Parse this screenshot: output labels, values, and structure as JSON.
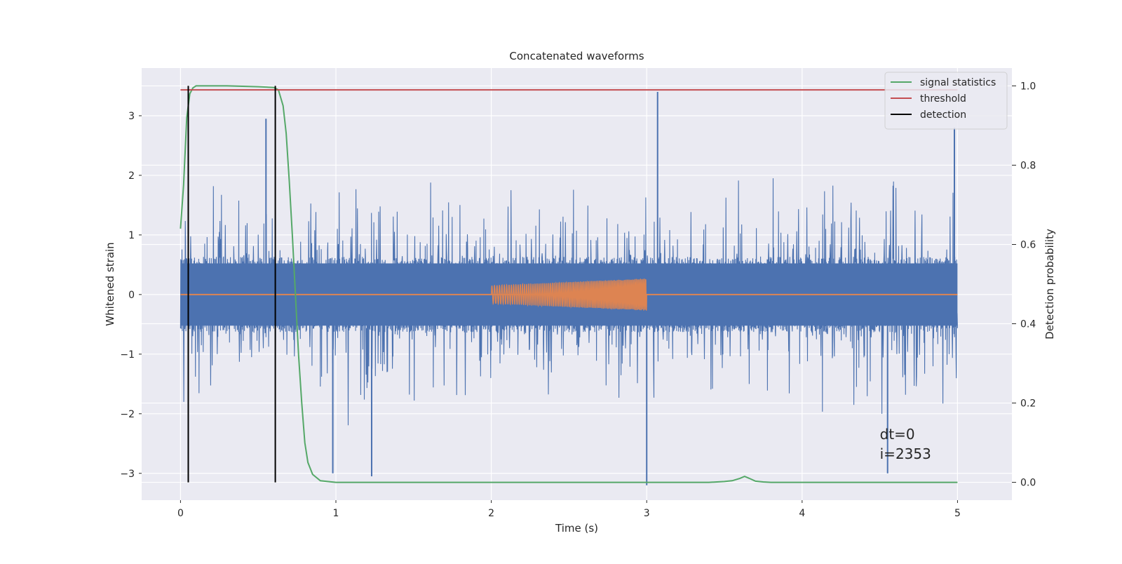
{
  "chart_data": {
    "type": "line",
    "title": "Concatenated waveforms",
    "xlabel": "Time (s)",
    "ylabel_left": "Whitened strain",
    "ylabel_right": "Detection probability",
    "xlim": [
      -0.25,
      5.35
    ],
    "ylim_left": [
      -3.45,
      3.8
    ],
    "ylim_right": [
      -0.045,
      1.045
    ],
    "xticks": [
      0,
      1,
      2,
      3,
      4,
      5
    ],
    "xtick_labels": [
      "0",
      "1",
      "2",
      "3",
      "4",
      "5"
    ],
    "yticks_left": [
      -3,
      -2,
      -1,
      0,
      1,
      2,
      3
    ],
    "ytick_labels_left": [
      "−3",
      "−2",
      "−1",
      "0",
      "1",
      "2",
      "3"
    ],
    "yticks_right": [
      0.0,
      0.2,
      0.4,
      0.6,
      0.8,
      1.0
    ],
    "ytick_labels_right": [
      "0.0",
      "0.2",
      "0.4",
      "0.6",
      "0.8",
      "1.0"
    ],
    "grid": true,
    "legend_position": "top-right",
    "series": [
      {
        "name": "",
        "axis": "left",
        "color": "#4c72b0",
        "kind": "noise",
        "x_range": [
          0,
          5
        ],
        "core_amplitude": 0.55,
        "spike_max": 3.4,
        "spike_min": -3.2
      },
      {
        "name": "",
        "axis": "left",
        "color": "#dd8452",
        "kind": "chirp",
        "x_range": [
          0,
          5
        ],
        "chirp_start": 2.0,
        "chirp_end": 3.0,
        "amplitude_start": 0.15,
        "amplitude_end": 0.27
      },
      {
        "name": "signal statistics",
        "axis": "right",
        "color": "#55a868",
        "x": [
          0.0,
          0.02,
          0.04,
          0.06,
          0.08,
          0.1,
          0.15,
          0.3,
          0.5,
          0.6,
          0.63,
          0.66,
          0.68,
          0.7,
          0.72,
          0.74,
          0.76,
          0.78,
          0.8,
          0.82,
          0.85,
          0.9,
          1.0,
          2.0,
          3.0,
          3.4,
          3.5,
          3.55,
          3.6,
          3.63,
          3.66,
          3.7,
          3.75,
          3.8,
          4.0,
          5.0
        ],
        "y": [
          0.64,
          0.75,
          0.92,
          0.98,
          0.995,
          1.0,
          1.0,
          1.0,
          0.998,
          0.996,
          0.99,
          0.95,
          0.88,
          0.76,
          0.62,
          0.47,
          0.32,
          0.2,
          0.1,
          0.05,
          0.02,
          0.004,
          0.0,
          0.0,
          0.0,
          0.0,
          0.002,
          0.004,
          0.01,
          0.015,
          0.01,
          0.003,
          0.001,
          0.0,
          0.0,
          0.0
        ]
      },
      {
        "name": "threshold",
        "axis": "right",
        "color": "#c44e52",
        "x": [
          0,
          5
        ],
        "y": [
          0.99,
          0.99
        ]
      },
      {
        "name": "detection",
        "axis": "right",
        "color": "#000000",
        "vlines_x": [
          0.05,
          0.61
        ],
        "ymin": 0.0,
        "ymax": 1.0
      }
    ],
    "annotation_lines": [
      "dt=0",
      "i=2353"
    ],
    "annotation_x": 4.5,
    "annotation_y": -2.45,
    "style": {
      "background": "#eaeaf2",
      "grid_color": "#ffffff"
    }
  }
}
